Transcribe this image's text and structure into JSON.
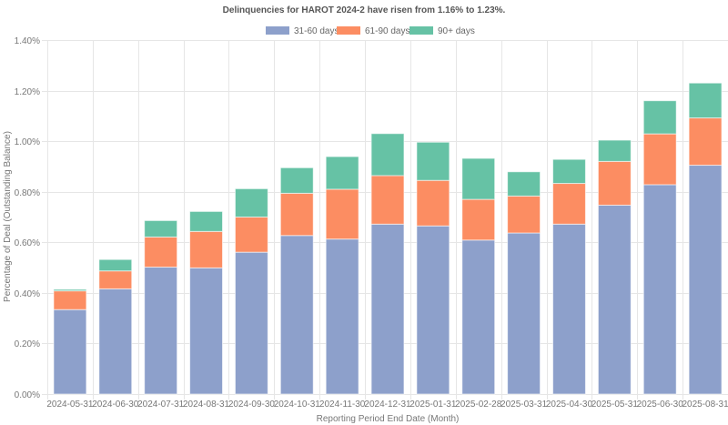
{
  "chart_data": {
    "type": "bar",
    "stacked": true,
    "title": "Delinquencies for HAROT 2024-2 have risen from 1.16% to 1.23%.",
    "xlabel": "Reporting Period End Date (Month)",
    "ylabel": "Percentage of Deal (Outstanding Balance)",
    "ylim": [
      0,
      1.4
    ],
    "yticks": [
      0,
      0.2,
      0.4,
      0.6,
      0.8,
      1.0,
      1.2,
      1.4
    ],
    "ytick_labels": [
      "0.00%",
      "0.20%",
      "0.40%",
      "0.60%",
      "0.80%",
      "1.00%",
      "1.20%",
      "1.40%"
    ],
    "grid": true,
    "legend_position": "top-center",
    "categories": [
      "2024-05-31",
      "2024-06-30",
      "2024-07-31",
      "2024-08-31",
      "2024-09-30",
      "2024-10-31",
      "2024-11-30",
      "2024-12-31",
      "2025-01-31",
      "2025-02-28",
      "2025-03-31",
      "2025-04-30",
      "2025-05-31",
      "2025-06-30",
      "2025-08-31"
    ],
    "series": [
      {
        "name": "31-60 days",
        "color": "#8da0cb",
        "values": [
          0.334,
          0.416,
          0.502,
          0.499,
          0.561,
          0.627,
          0.613,
          0.672,
          0.665,
          0.609,
          0.637,
          0.672,
          0.747,
          0.828,
          0.905
        ]
      },
      {
        "name": "61-90 days",
        "color": "#fc8d62",
        "values": [
          0.074,
          0.071,
          0.119,
          0.144,
          0.139,
          0.167,
          0.197,
          0.192,
          0.18,
          0.161,
          0.146,
          0.161,
          0.173,
          0.201,
          0.187
        ]
      },
      {
        "name": "90+ days",
        "color": "#66c2a5",
        "values": [
          0.006,
          0.045,
          0.065,
          0.079,
          0.112,
          0.101,
          0.129,
          0.166,
          0.151,
          0.162,
          0.096,
          0.095,
          0.084,
          0.131,
          0.138
        ]
      }
    ]
  }
}
